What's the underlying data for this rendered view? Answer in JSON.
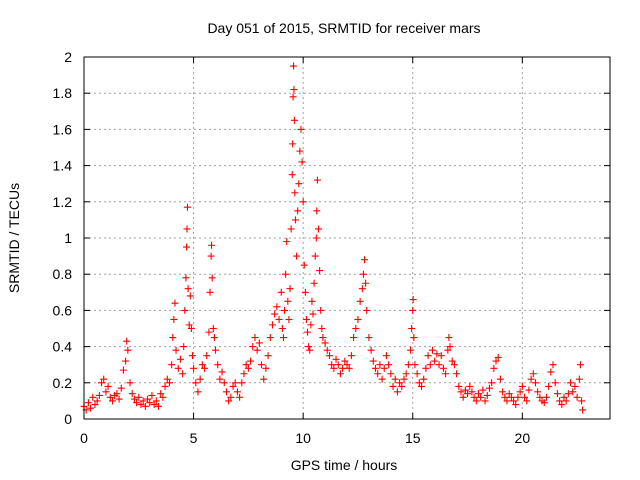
{
  "chart_data": {
    "type": "scatter",
    "title": "Day 051 of 2015, SRMTID for receiver mars",
    "xlabel": "GPS time / hours",
    "ylabel": "SRMTID / TECUs",
    "xlim": [
      0,
      24
    ],
    "ylim": [
      0,
      2
    ],
    "x_ticks": [
      "0",
      "5",
      "10",
      "15",
      "20"
    ],
    "y_ticks": [
      "0",
      "0.2",
      "0.4",
      "0.6",
      "0.8",
      "1",
      "1.2",
      "1.4",
      "1.6",
      "1.8",
      "2"
    ],
    "grid": true,
    "marker": "+",
    "series": [
      {
        "color": "#ff0000",
        "points": [
          [
            0.0,
            0.07
          ],
          [
            0.1,
            0.05
          ],
          [
            0.2,
            0.09
          ],
          [
            0.3,
            0.06
          ],
          [
            0.4,
            0.12
          ],
          [
            0.5,
            0.08
          ],
          [
            0.6,
            0.1
          ],
          [
            0.7,
            0.13
          ],
          [
            0.8,
            0.2
          ],
          [
            0.9,
            0.22
          ],
          [
            1.0,
            0.15
          ],
          [
            1.1,
            0.18
          ],
          [
            1.2,
            0.12
          ],
          [
            1.3,
            0.1
          ],
          [
            1.4,
            0.13
          ],
          [
            1.5,
            0.14
          ],
          [
            1.6,
            0.11
          ],
          [
            1.7,
            0.17
          ],
          [
            1.8,
            0.27
          ],
          [
            1.9,
            0.32
          ],
          [
            1.95,
            0.43
          ],
          [
            2.0,
            0.38
          ],
          [
            2.1,
            0.2
          ],
          [
            2.2,
            0.14
          ],
          [
            2.3,
            0.11
          ],
          [
            2.4,
            0.09
          ],
          [
            2.5,
            0.12
          ],
          [
            2.6,
            0.08
          ],
          [
            2.7,
            0.1
          ],
          [
            2.8,
            0.07
          ],
          [
            2.9,
            0.11
          ],
          [
            3.0,
            0.09
          ],
          [
            3.1,
            0.13
          ],
          [
            3.2,
            0.08
          ],
          [
            3.3,
            0.1
          ],
          [
            3.4,
            0.07
          ],
          [
            3.5,
            0.14
          ],
          [
            3.6,
            0.12
          ],
          [
            3.7,
            0.18
          ],
          [
            3.8,
            0.22
          ],
          [
            3.9,
            0.2
          ],
          [
            4.0,
            0.3
          ],
          [
            4.05,
            0.45
          ],
          [
            4.1,
            0.55
          ],
          [
            4.15,
            0.64
          ],
          [
            4.2,
            0.38
          ],
          [
            4.3,
            0.28
          ],
          [
            4.4,
            0.33
          ],
          [
            4.5,
            0.25
          ],
          [
            4.55,
            0.4
          ],
          [
            4.6,
            0.6
          ],
          [
            4.65,
            0.78
          ],
          [
            4.68,
            0.95
          ],
          [
            4.7,
            1.05
          ],
          [
            4.72,
            1.17
          ],
          [
            4.75,
            0.72
          ],
          [
            4.8,
            0.52
          ],
          [
            4.85,
            0.68
          ],
          [
            4.9,
            0.5
          ],
          [
            4.95,
            0.35
          ],
          [
            5.0,
            0.28
          ],
          [
            5.1,
            0.2
          ],
          [
            5.2,
            0.15
          ],
          [
            5.3,
            0.22
          ],
          [
            5.4,
            0.3
          ],
          [
            5.5,
            0.28
          ],
          [
            5.6,
            0.35
          ],
          [
            5.7,
            0.48
          ],
          [
            5.75,
            0.7
          ],
          [
            5.8,
            0.9
          ],
          [
            5.82,
            0.96
          ],
          [
            5.85,
            0.78
          ],
          [
            5.9,
            0.5
          ],
          [
            5.95,
            0.45
          ],
          [
            6.0,
            0.38
          ],
          [
            6.1,
            0.3
          ],
          [
            6.2,
            0.22
          ],
          [
            6.3,
            0.26
          ],
          [
            6.4,
            0.2
          ],
          [
            6.5,
            0.15
          ],
          [
            6.6,
            0.1
          ],
          [
            6.7,
            0.12
          ],
          [
            6.8,
            0.18
          ],
          [
            6.9,
            0.2
          ],
          [
            7.0,
            0.15
          ],
          [
            7.1,
            0.12
          ],
          [
            7.2,
            0.2
          ],
          [
            7.3,
            0.25
          ],
          [
            7.4,
            0.3
          ],
          [
            7.5,
            0.28
          ],
          [
            7.6,
            0.32
          ],
          [
            7.7,
            0.4
          ],
          [
            7.8,
            0.45
          ],
          [
            7.9,
            0.38
          ],
          [
            8.0,
            0.42
          ],
          [
            8.1,
            0.3
          ],
          [
            8.2,
            0.22
          ],
          [
            8.3,
            0.28
          ],
          [
            8.4,
            0.35
          ],
          [
            8.5,
            0.45
          ],
          [
            8.6,
            0.52
          ],
          [
            8.7,
            0.58
          ],
          [
            8.8,
            0.62
          ],
          [
            8.9,
            0.55
          ],
          [
            9.0,
            0.7
          ],
          [
            9.05,
            0.5
          ],
          [
            9.1,
            0.45
          ],
          [
            9.15,
            0.6
          ],
          [
            9.2,
            0.8
          ],
          [
            9.25,
            0.98
          ],
          [
            9.3,
            0.65
          ],
          [
            9.35,
            0.55
          ],
          [
            9.4,
            0.72
          ],
          [
            9.45,
            1.05
          ],
          [
            9.5,
            1.35
          ],
          [
            9.52,
            1.52
          ],
          [
            9.54,
            1.78
          ],
          [
            9.56,
            1.95
          ],
          [
            9.58,
            1.82
          ],
          [
            9.6,
            1.65
          ],
          [
            9.62,
            1.25
          ],
          [
            9.65,
            1.1
          ],
          [
            9.7,
            0.9
          ],
          [
            9.75,
            1.15
          ],
          [
            9.8,
            1.3
          ],
          [
            9.85,
            1.48
          ],
          [
            9.9,
            1.6
          ],
          [
            9.95,
            1.42
          ],
          [
            10.0,
            1.2
          ],
          [
            10.05,
            0.85
          ],
          [
            10.1,
            0.7
          ],
          [
            10.15,
            0.55
          ],
          [
            10.2,
            0.48
          ],
          [
            10.25,
            0.4
          ],
          [
            10.3,
            0.38
          ],
          [
            10.35,
            0.52
          ],
          [
            10.4,
            0.65
          ],
          [
            10.45,
            0.58
          ],
          [
            10.5,
            0.75
          ],
          [
            10.55,
            0.9
          ],
          [
            10.6,
            1.0
          ],
          [
            10.62,
            1.15
          ],
          [
            10.65,
            1.32
          ],
          [
            10.7,
            1.05
          ],
          [
            10.75,
            0.82
          ],
          [
            10.8,
            0.6
          ],
          [
            10.85,
            0.5
          ],
          [
            10.9,
            0.45
          ],
          [
            11.0,
            0.42
          ],
          [
            11.1,
            0.38
          ],
          [
            11.2,
            0.35
          ],
          [
            11.3,
            0.3
          ],
          [
            11.4,
            0.28
          ],
          [
            11.5,
            0.33
          ],
          [
            11.6,
            0.3
          ],
          [
            11.7,
            0.25
          ],
          [
            11.8,
            0.28
          ],
          [
            11.9,
            0.32
          ],
          [
            12.0,
            0.3
          ],
          [
            12.1,
            0.28
          ],
          [
            12.2,
            0.35
          ],
          [
            12.3,
            0.45
          ],
          [
            12.4,
            0.5
          ],
          [
            12.5,
            0.55
          ],
          [
            12.6,
            0.65
          ],
          [
            12.7,
            0.72
          ],
          [
            12.75,
            0.8
          ],
          [
            12.8,
            0.88
          ],
          [
            12.85,
            0.75
          ],
          [
            12.9,
            0.6
          ],
          [
            13.0,
            0.45
          ],
          [
            13.1,
            0.38
          ],
          [
            13.2,
            0.32
          ],
          [
            13.3,
            0.28
          ],
          [
            13.4,
            0.25
          ],
          [
            13.5,
            0.3
          ],
          [
            13.6,
            0.22
          ],
          [
            13.7,
            0.28
          ],
          [
            13.8,
            0.35
          ],
          [
            13.9,
            0.3
          ],
          [
            14.0,
            0.25
          ],
          [
            14.1,
            0.18
          ],
          [
            14.2,
            0.22
          ],
          [
            14.3,
            0.15
          ],
          [
            14.4,
            0.2
          ],
          [
            14.5,
            0.18
          ],
          [
            14.6,
            0.22
          ],
          [
            14.7,
            0.25
          ],
          [
            14.8,
            0.3
          ],
          [
            14.9,
            0.38
          ],
          [
            14.95,
            0.5
          ],
          [
            15.0,
            0.6
          ],
          [
            15.02,
            0.66
          ],
          [
            15.05,
            0.45
          ],
          [
            15.1,
            0.3
          ],
          [
            15.2,
            0.25
          ],
          [
            15.3,
            0.2
          ],
          [
            15.4,
            0.18
          ],
          [
            15.5,
            0.22
          ],
          [
            15.6,
            0.28
          ],
          [
            15.7,
            0.35
          ],
          [
            15.8,
            0.3
          ],
          [
            15.9,
            0.38
          ],
          [
            16.0,
            0.32
          ],
          [
            16.1,
            0.36
          ],
          [
            16.2,
            0.3
          ],
          [
            16.3,
            0.35
          ],
          [
            16.4,
            0.28
          ],
          [
            16.5,
            0.25
          ],
          [
            16.6,
            0.38
          ],
          [
            16.65,
            0.45
          ],
          [
            16.7,
            0.4
          ],
          [
            16.8,
            0.32
          ],
          [
            16.9,
            0.3
          ],
          [
            17.0,
            0.25
          ],
          [
            17.1,
            0.18
          ],
          [
            17.2,
            0.15
          ],
          [
            17.3,
            0.12
          ],
          [
            17.4,
            0.16
          ],
          [
            17.5,
            0.14
          ],
          [
            17.6,
            0.18
          ],
          [
            17.7,
            0.15
          ],
          [
            17.8,
            0.12
          ],
          [
            17.9,
            0.1
          ],
          [
            18.0,
            0.14
          ],
          [
            18.1,
            0.12
          ],
          [
            18.2,
            0.16
          ],
          [
            18.3,
            0.1
          ],
          [
            18.4,
            0.13
          ],
          [
            18.5,
            0.17
          ],
          [
            18.6,
            0.2
          ],
          [
            18.7,
            0.28
          ],
          [
            18.8,
            0.32
          ],
          [
            18.9,
            0.34
          ],
          [
            19.0,
            0.22
          ],
          [
            19.1,
            0.15
          ],
          [
            19.2,
            0.12
          ],
          [
            19.3,
            0.1
          ],
          [
            19.4,
            0.14
          ],
          [
            19.5,
            0.12
          ],
          [
            19.6,
            0.1
          ],
          [
            19.7,
            0.08
          ],
          [
            19.8,
            0.12
          ],
          [
            19.9,
            0.15
          ],
          [
            20.0,
            0.18
          ],
          [
            20.1,
            0.12
          ],
          [
            20.2,
            0.1
          ],
          [
            20.3,
            0.16
          ],
          [
            20.4,
            0.22
          ],
          [
            20.5,
            0.25
          ],
          [
            20.6,
            0.2
          ],
          [
            20.7,
            0.15
          ],
          [
            20.8,
            0.12
          ],
          [
            20.9,
            0.1
          ],
          [
            21.0,
            0.09
          ],
          [
            21.1,
            0.12
          ],
          [
            21.2,
            0.18
          ],
          [
            21.3,
            0.26
          ],
          [
            21.4,
            0.3
          ],
          [
            21.5,
            0.2
          ],
          [
            21.6,
            0.14
          ],
          [
            21.7,
            0.1
          ],
          [
            21.8,
            0.08
          ],
          [
            21.9,
            0.12
          ],
          [
            22.0,
            0.1
          ],
          [
            22.1,
            0.14
          ],
          [
            22.2,
            0.2
          ],
          [
            22.3,
            0.15
          ],
          [
            22.4,
            0.18
          ],
          [
            22.5,
            0.12
          ],
          [
            22.6,
            0.22
          ],
          [
            22.65,
            0.3
          ],
          [
            22.7,
            0.1
          ],
          [
            22.75,
            0.05
          ]
        ]
      }
    ]
  }
}
